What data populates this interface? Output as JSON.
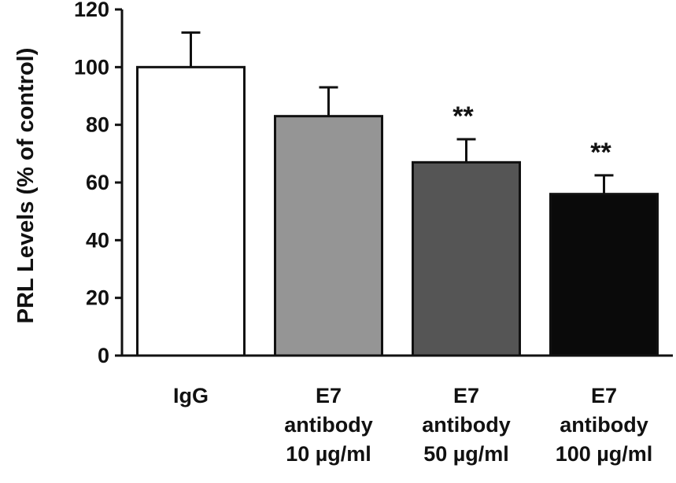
{
  "chart_data": {
    "type": "bar",
    "ylabel": "PRL Levels (% of control)",
    "xlabel": "",
    "title": "",
    "ylim": [
      0,
      120
    ],
    "yticks": [
      "0",
      "20",
      "40",
      "60",
      "80",
      "100",
      "120"
    ],
    "grid": false,
    "categories": [
      [
        "IgG"
      ],
      [
        "E7",
        "antibody",
        "10 µg/ml"
      ],
      [
        "E7",
        "antibody",
        "50 µg/ml"
      ],
      [
        "E7",
        "antibody",
        "100 µg/ml"
      ]
    ],
    "values": [
      100,
      83,
      67,
      56
    ],
    "errors": [
      12,
      10,
      8,
      6.5
    ],
    "significance": [
      "",
      "",
      "**",
      "**"
    ],
    "colors": [
      "#ffffff",
      "#959595",
      "#555555",
      "#0a0a0a"
    ]
  }
}
